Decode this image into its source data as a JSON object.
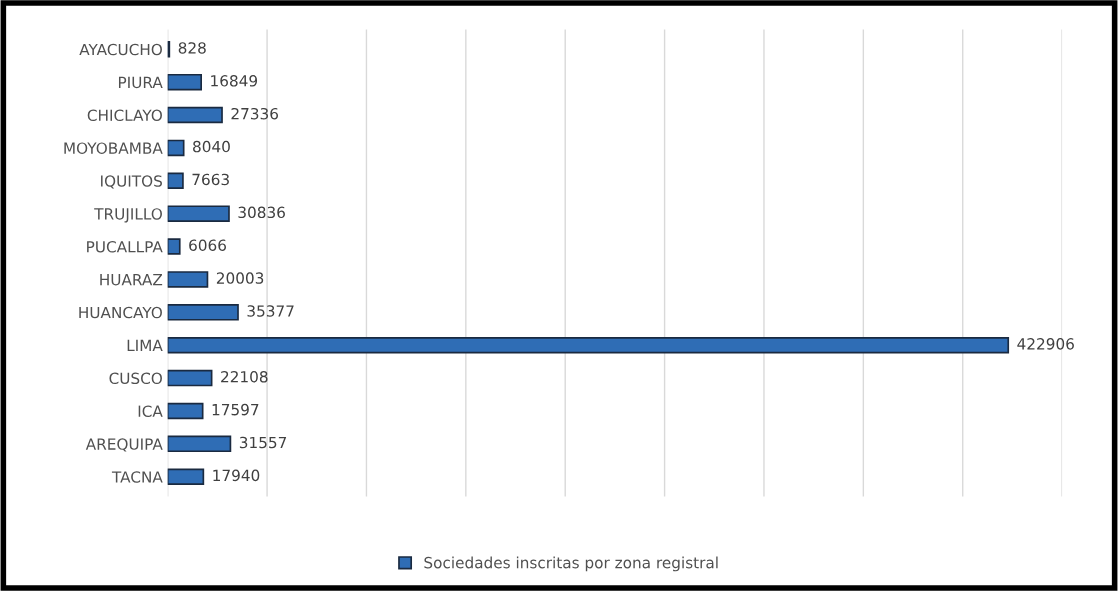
{
  "chart_data": {
    "type": "bar",
    "orientation": "horizontal",
    "categories": [
      "AYACUCHO",
      "PIURA",
      "CHICLAYO",
      "MOYOBAMBA",
      "IQUITOS",
      "TRUJILLO",
      "PUCALLPA",
      "HUARAZ",
      "HUANCAYO",
      "LIMA",
      "CUSCO",
      "ICA",
      "AREQUIPA",
      "TACNA"
    ],
    "series": [
      {
        "name": "Sociedades inscritas por zona registral",
        "color": "#2f6db5",
        "values": [
          828,
          16849,
          27336,
          8040,
          7663,
          30836,
          6066,
          20003,
          35377,
          422906,
          22108,
          17597,
          31557,
          17940
        ]
      }
    ],
    "xlim": [
      0,
      450000
    ],
    "xticks": [
      {
        "value": 0,
        "label": null
      },
      {
        "value": 50000,
        "label": null
      },
      {
        "value": 100000,
        "label": null
      },
      {
        "value": 150000,
        "label": null
      },
      {
        "value": 200000,
        "label": null
      },
      {
        "value": 250000,
        "label": null
      },
      {
        "value": 300000,
        "label": null
      },
      {
        "value": 350000,
        "label": null
      },
      {
        "value": 400000,
        "label": null
      },
      {
        "value": 450000,
        "label": null
      }
    ],
    "data_labels": true,
    "grid": "x",
    "legend": "bottom"
  }
}
